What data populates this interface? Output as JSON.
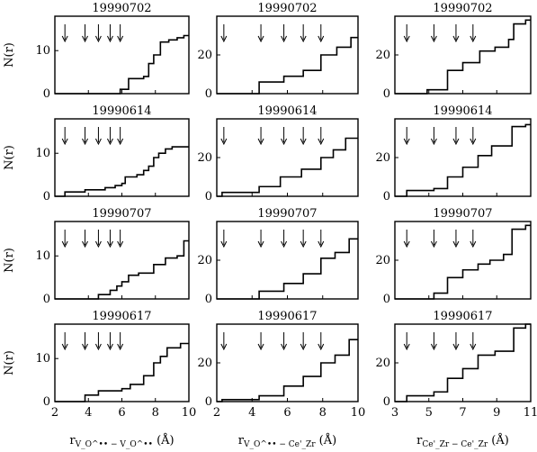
{
  "chart_data": [
    {
      "type": "line",
      "step": "post",
      "row": 0,
      "col": 0,
      "title": "19990702",
      "ylabel": "N(r)",
      "xlim": [
        2,
        10
      ],
      "ylim": [
        0,
        18
      ],
      "yticks": [
        0,
        10
      ],
      "arrows": [
        2.6,
        3.8,
        4.6,
        5.3,
        5.9
      ],
      "steps": [
        [
          2.0,
          0
        ],
        [
          5.9,
          1
        ],
        [
          6.4,
          3.5
        ],
        [
          7.3,
          4
        ],
        [
          7.6,
          7
        ],
        [
          7.9,
          9
        ],
        [
          8.3,
          12
        ],
        [
          8.8,
          12.5
        ],
        [
          9.3,
          13
        ],
        [
          9.7,
          13.5
        ],
        [
          10.0,
          13.5
        ]
      ]
    },
    {
      "type": "line",
      "step": "post",
      "row": 0,
      "col": 1,
      "title": "19990702",
      "ylabel": "",
      "xlim": [
        2,
        10
      ],
      "ylim": [
        0,
        40
      ],
      "yticks": [
        0,
        20
      ],
      "arrows": [
        2.4,
        4.5,
        5.8,
        6.9,
        7.9
      ],
      "steps": [
        [
          2.0,
          0
        ],
        [
          4.4,
          6
        ],
        [
          5.8,
          9
        ],
        [
          6.9,
          12
        ],
        [
          7.9,
          20
        ],
        [
          8.8,
          24
        ],
        [
          9.6,
          29
        ],
        [
          10.0,
          29
        ]
      ]
    },
    {
      "type": "line",
      "step": "post",
      "row": 0,
      "col": 2,
      "title": "19990702",
      "ylabel": "",
      "xlim": [
        3,
        11
      ],
      "ylim": [
        0,
        40
      ],
      "yticks": [
        0,
        20
      ],
      "arrows": [
        3.7,
        5.3,
        6.6,
        7.6
      ],
      "steps": [
        [
          3.0,
          0
        ],
        [
          4.9,
          2
        ],
        [
          6.1,
          12
        ],
        [
          7.0,
          16
        ],
        [
          8.0,
          22
        ],
        [
          8.9,
          24
        ],
        [
          9.7,
          28
        ],
        [
          10.0,
          36
        ],
        [
          10.7,
          38
        ],
        [
          11.0,
          38
        ]
      ]
    },
    {
      "type": "line",
      "step": "post",
      "row": 1,
      "col": 0,
      "title": "19990614",
      "ylabel": "N(r)",
      "xlim": [
        2,
        10
      ],
      "ylim": [
        0,
        18
      ],
      "yticks": [
        0,
        10
      ],
      "arrows": [
        2.6,
        3.8,
        4.6,
        5.3,
        5.9
      ],
      "steps": [
        [
          2.0,
          0
        ],
        [
          2.6,
          1
        ],
        [
          3.8,
          1.5
        ],
        [
          5.0,
          2
        ],
        [
          5.6,
          2.5
        ],
        [
          6.0,
          3
        ],
        [
          6.2,
          4.5
        ],
        [
          6.9,
          5
        ],
        [
          7.3,
          6
        ],
        [
          7.6,
          7
        ],
        [
          7.9,
          9
        ],
        [
          8.2,
          10
        ],
        [
          8.6,
          11
        ],
        [
          9.0,
          11.5
        ],
        [
          9.6,
          11.5
        ],
        [
          10.0,
          11.5
        ]
      ]
    },
    {
      "type": "line",
      "step": "post",
      "row": 1,
      "col": 1,
      "title": "19990614",
      "ylabel": "",
      "xlim": [
        2,
        10
      ],
      "ylim": [
        0,
        40
      ],
      "yticks": [
        0,
        20
      ],
      "arrows": [
        2.4,
        4.5,
        5.8,
        6.9,
        7.9
      ],
      "steps": [
        [
          2.0,
          0
        ],
        [
          2.3,
          2
        ],
        [
          4.4,
          5
        ],
        [
          5.6,
          10
        ],
        [
          6.8,
          14
        ],
        [
          7.9,
          20
        ],
        [
          8.6,
          24
        ],
        [
          9.3,
          30
        ],
        [
          10.0,
          30
        ]
      ]
    },
    {
      "type": "line",
      "step": "post",
      "row": 1,
      "col": 2,
      "title": "19990614",
      "ylabel": "",
      "xlim": [
        3,
        11
      ],
      "ylim": [
        0,
        40
      ],
      "yticks": [
        0,
        20
      ],
      "arrows": [
        3.7,
        5.3,
        6.6,
        7.6
      ],
      "steps": [
        [
          3.0,
          0
        ],
        [
          3.7,
          3
        ],
        [
          5.3,
          4
        ],
        [
          6.1,
          10
        ],
        [
          7.0,
          15
        ],
        [
          7.9,
          21
        ],
        [
          8.7,
          26
        ],
        [
          9.9,
          36
        ],
        [
          10.7,
          37
        ],
        [
          11.0,
          37
        ]
      ]
    },
    {
      "type": "line",
      "step": "post",
      "row": 2,
      "col": 0,
      "title": "19990707",
      "ylabel": "N(r)",
      "xlim": [
        2,
        10
      ],
      "ylim": [
        0,
        18
      ],
      "yticks": [
        0,
        10
      ],
      "arrows": [
        2.6,
        3.8,
        4.6,
        5.3,
        5.9
      ],
      "steps": [
        [
          2.0,
          0
        ],
        [
          4.6,
          1
        ],
        [
          5.3,
          2
        ],
        [
          5.7,
          3
        ],
        [
          6.0,
          4
        ],
        [
          6.4,
          5.5
        ],
        [
          7.0,
          6
        ],
        [
          7.9,
          8
        ],
        [
          8.6,
          9.5
        ],
        [
          9.3,
          10
        ],
        [
          9.7,
          13.5
        ],
        [
          10.0,
          13.5
        ]
      ]
    },
    {
      "type": "line",
      "step": "post",
      "row": 2,
      "col": 1,
      "title": "19990707",
      "ylabel": "",
      "xlim": [
        2,
        10
      ],
      "ylim": [
        0,
        40
      ],
      "yticks": [
        0,
        20
      ],
      "arrows": [
        2.4,
        4.5,
        5.8,
        6.9,
        7.9
      ],
      "steps": [
        [
          2.0,
          0
        ],
        [
          4.4,
          4
        ],
        [
          5.8,
          8
        ],
        [
          6.9,
          13
        ],
        [
          7.9,
          21
        ],
        [
          8.7,
          24
        ],
        [
          9.5,
          31
        ],
        [
          10.0,
          31
        ]
      ]
    },
    {
      "type": "line",
      "step": "post",
      "row": 2,
      "col": 2,
      "title": "19990707",
      "ylabel": "",
      "xlim": [
        3,
        11
      ],
      "ylim": [
        0,
        40
      ],
      "yticks": [
        0,
        20
      ],
      "arrows": [
        3.7,
        5.3,
        6.6,
        7.6
      ],
      "steps": [
        [
          3.0,
          0
        ],
        [
          5.3,
          3
        ],
        [
          6.1,
          11
        ],
        [
          7.0,
          15
        ],
        [
          7.9,
          18
        ],
        [
          8.6,
          20
        ],
        [
          9.4,
          23
        ],
        [
          9.9,
          36
        ],
        [
          10.7,
          38
        ],
        [
          11.0,
          38
        ]
      ]
    },
    {
      "type": "line",
      "step": "post",
      "row": 3,
      "col": 0,
      "title": "19990617",
      "ylabel": "N(r)",
      "xlim": [
        2,
        10
      ],
      "ylim": [
        0,
        18
      ],
      "yticks": [
        0,
        10
      ],
      "arrows": [
        2.6,
        3.8,
        4.6,
        5.3,
        5.9
      ],
      "steps": [
        [
          2.0,
          0
        ],
        [
          3.8,
          1.5
        ],
        [
          4.6,
          2.5
        ],
        [
          6.0,
          3
        ],
        [
          6.5,
          4
        ],
        [
          7.3,
          6
        ],
        [
          7.9,
          9
        ],
        [
          8.3,
          10.5
        ],
        [
          8.7,
          12.5
        ],
        [
          9.5,
          13.5
        ],
        [
          10.0,
          13.5
        ]
      ]
    },
    {
      "type": "line",
      "step": "post",
      "row": 3,
      "col": 1,
      "title": "19990617",
      "ylabel": "",
      "xlim": [
        2,
        10
      ],
      "ylim": [
        0,
        40
      ],
      "yticks": [
        0,
        20
      ],
      "arrows": [
        2.4,
        4.5,
        5.8,
        6.9,
        7.9
      ],
      "steps": [
        [
          2.0,
          0
        ],
        [
          2.3,
          1
        ],
        [
          4.4,
          3
        ],
        [
          5.8,
          8
        ],
        [
          6.9,
          13
        ],
        [
          7.9,
          20
        ],
        [
          8.7,
          24
        ],
        [
          9.5,
          32
        ],
        [
          10.0,
          32
        ]
      ]
    },
    {
      "type": "line",
      "step": "post",
      "row": 3,
      "col": 2,
      "title": "19990617",
      "ylabel": "",
      "xlim": [
        3,
        11
      ],
      "ylim": [
        0,
        40
      ],
      "yticks": [
        0,
        20
      ],
      "arrows": [
        3.7,
        5.3,
        6.6,
        7.6
      ],
      "steps": [
        [
          3.0,
          0
        ],
        [
          3.7,
          3
        ],
        [
          5.3,
          5
        ],
        [
          6.1,
          12
        ],
        [
          7.0,
          17
        ],
        [
          7.9,
          24
        ],
        [
          8.9,
          26
        ],
        [
          10.0,
          38
        ],
        [
          10.7,
          40
        ],
        [
          11.0,
          40
        ]
      ]
    }
  ],
  "x_axes": [
    {
      "col": 0,
      "ticks": [
        2,
        4,
        6,
        8,
        10
      ],
      "label_prefix": "r",
      "label_sub": "V_O^•• − V_O^••",
      "label_unit": "(Å)"
    },
    {
      "col": 1,
      "ticks": [
        2,
        4,
        6,
        8,
        10
      ],
      "label_prefix": "r",
      "label_sub": "V_O^•• − Ce'_Zr",
      "label_unit": "(Å)"
    },
    {
      "col": 2,
      "ticks": [
        3,
        5,
        7,
        9,
        11
      ],
      "label_prefix": "r",
      "label_sub": "Ce'_Zr − Ce'_Zr",
      "label_unit": "(Å)"
    }
  ],
  "style": {
    "line_color": "#000000",
    "background": "#ffffff"
  }
}
